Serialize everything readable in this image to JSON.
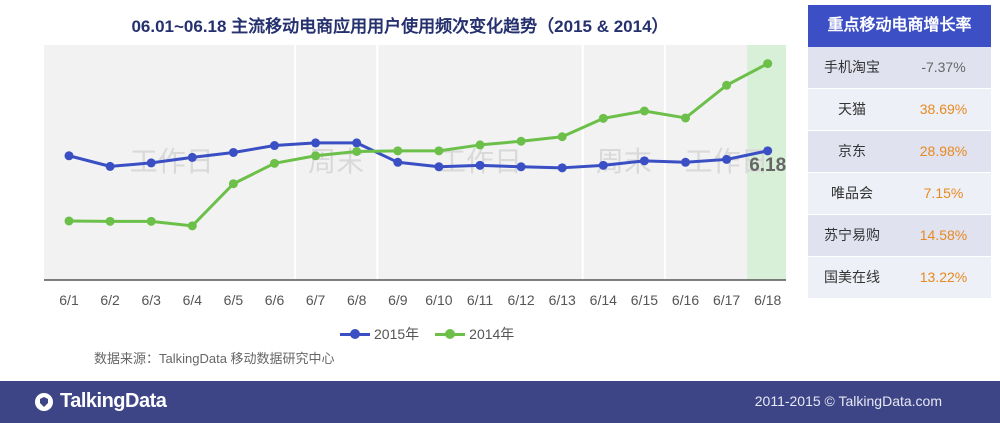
{
  "chart_data": {
    "type": "line",
    "title": "06.01~06.18 主流移动电商应用用户使用频次变化趋势（2015 & 2014）",
    "categories": [
      "6/1",
      "6/2",
      "6/3",
      "6/4",
      "6/5",
      "6/6",
      "6/7",
      "6/8",
      "6/9",
      "6/10",
      "6/11",
      "6/12",
      "6/13",
      "6/14",
      "6/15",
      "6/16",
      "6/17",
      "6/18"
    ],
    "series": [
      {
        "name": "2015年",
        "color": "#3a4fc4",
        "values": [
          60.8,
          55.6,
          57.3,
          60.0,
          62.4,
          65.8,
          67.1,
          67.1,
          57.6,
          55.4,
          56.1,
          55.4,
          54.9,
          56.1,
          58.3,
          57.6,
          59.0,
          63.2
        ]
      },
      {
        "name": "2014年",
        "color": "#6cc04a",
        "values": [
          28.9,
          28.7,
          28.7,
          26.5,
          47.1,
          57.1,
          60.8,
          62.9,
          63.2,
          63.2,
          66.1,
          67.9,
          70.1,
          79.1,
          82.7,
          79.3,
          95.3,
          105.9
        ]
      }
    ],
    "ylim": [
      0,
      115
    ],
    "grid": false,
    "legend": "bottom",
    "period_labels": [
      "工作日",
      "周末",
      "工作日",
      "周末",
      "工作日"
    ],
    "highlight_label": "6.18"
  },
  "source_text": "数据来源：TalkingData 移动数据研究中心",
  "side_table": {
    "title": "重点移动电商增长率",
    "rows": [
      {
        "name": "手机淘宝",
        "value": "-7.37%"
      },
      {
        "name": "天猫",
        "value": "38.69%"
      },
      {
        "name": "京东",
        "value": "28.98%"
      },
      {
        "name": "唯品会",
        "value": "7.15%"
      },
      {
        "name": "苏宁易购",
        "value": "14.58%"
      },
      {
        "name": "国美在线",
        "value": "13.22%"
      }
    ]
  },
  "footer": {
    "brand": "TalkingData",
    "copyright": "2011-2015 © TalkingData.com"
  },
  "colors": {
    "header_blue": "#3c4fc4",
    "footer_navy": "#3e4587",
    "growth_orange": "#e8891f",
    "highlight_green": "#d8efd8"
  }
}
